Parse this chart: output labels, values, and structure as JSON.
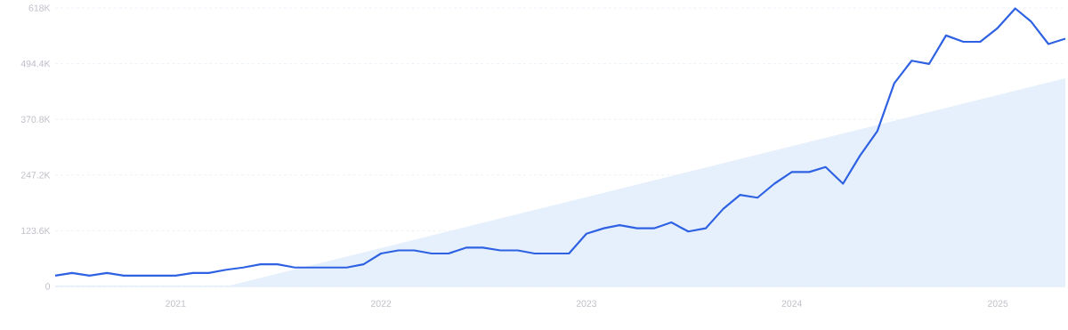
{
  "chart_data": {
    "type": "line",
    "x": [
      "2020-06",
      "2020-07",
      "2020-08",
      "2020-09",
      "2020-10",
      "2020-11",
      "2020-12",
      "2021-01",
      "2021-02",
      "2021-03",
      "2021-04",
      "2021-05",
      "2021-06",
      "2021-07",
      "2021-08",
      "2021-09",
      "2021-10",
      "2021-11",
      "2021-12",
      "2022-01",
      "2022-02",
      "2022-03",
      "2022-04",
      "2022-05",
      "2022-06",
      "2022-07",
      "2022-08",
      "2022-09",
      "2022-10",
      "2022-11",
      "2022-12",
      "2023-01",
      "2023-02",
      "2023-03",
      "2023-04",
      "2023-05",
      "2023-06",
      "2023-07",
      "2023-08",
      "2023-09",
      "2023-10",
      "2023-11",
      "2023-12",
      "2024-01",
      "2024-02",
      "2024-03",
      "2024-04",
      "2024-05",
      "2024-06",
      "2024-07",
      "2024-08",
      "2024-09",
      "2024-10",
      "2024-11",
      "2024-12",
      "2025-01",
      "2025-02",
      "2025-03",
      "2025-04",
      "2025-05"
    ],
    "series": [
      {
        "type": "area",
        "color": "#e6f0fc",
        "x": [
          "2021-04",
          "2025-05"
        ],
        "values": [
          0,
          462000
        ]
      },
      {
        "color": "#2f62e3",
        "values": [
          24000,
          30000,
          24000,
          30000,
          24000,
          24000,
          24000,
          24000,
          30000,
          30000,
          37000,
          42000,
          49000,
          49000,
          42000,
          42000,
          42000,
          42000,
          49000,
          73000,
          80000,
          80000,
          73000,
          73000,
          86000,
          86000,
          80000,
          80000,
          73000,
          73000,
          73000,
          117000,
          129000,
          136000,
          129000,
          129000,
          142000,
          122000,
          129000,
          172000,
          203000,
          197000,
          228000,
          254000,
          254000,
          265000,
          228000,
          290000,
          345000,
          451000,
          501000,
          494000,
          557000,
          543000,
          543000,
          574000,
          617000,
          588000,
          538000,
          550000
        ]
      }
    ],
    "xlim": [
      "2020-06",
      "2025-05"
    ],
    "xticks": [
      {
        "value": "2021-01",
        "label": "2021"
      },
      {
        "value": "2022-01",
        "label": "2022"
      },
      {
        "value": "2023-01",
        "label": "2023"
      },
      {
        "value": "2024-01",
        "label": "2024"
      },
      {
        "value": "2025-01",
        "label": "2025"
      }
    ],
    "ylim": [
      0,
      618000
    ],
    "yticks": [
      0,
      {
        "value": 123600,
        "label": "123.6K"
      },
      {
        "value": 247200,
        "label": "247.2K"
      },
      {
        "value": 370800,
        "label": "370.8K"
      },
      {
        "value": 494400,
        "label": "494.4K"
      },
      {
        "value": 618000,
        "label": "618K"
      }
    ],
    "grid": "y",
    "marker": "none"
  }
}
